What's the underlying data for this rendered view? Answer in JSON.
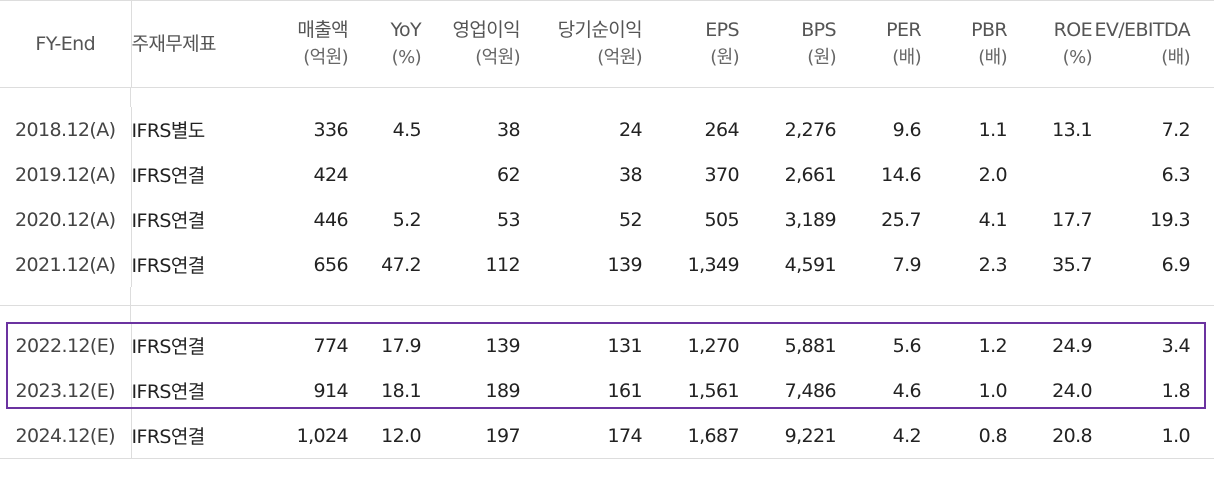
{
  "columns": [
    {
      "label": "FY-End",
      "unit": ""
    },
    {
      "label": "주재무제표",
      "unit": ""
    },
    {
      "label": "매출액",
      "unit": "(억원)"
    },
    {
      "label": "YoY",
      "unit": "(%)"
    },
    {
      "label": "영업이익",
      "unit": "(억원)"
    },
    {
      "label": "당기순이익",
      "unit": "(억원)"
    },
    {
      "label": "EPS",
      "unit": "(원)"
    },
    {
      "label": "BPS",
      "unit": "(원)"
    },
    {
      "label": "PER",
      "unit": "(배)"
    },
    {
      "label": "PBR",
      "unit": "(배)"
    },
    {
      "label": "ROE",
      "unit": "(%)"
    },
    {
      "label": "EV/EBITDA",
      "unit": "(배)"
    }
  ],
  "actual_rows": [
    [
      "2018.12(A)",
      "IFRS별도",
      "336",
      "4.5",
      "38",
      "24",
      "264",
      "2,276",
      "9.6",
      "1.1",
      "13.1",
      "7.2"
    ],
    [
      "2019.12(A)",
      "IFRS연결",
      "424",
      "",
      "62",
      "38",
      "370",
      "2,661",
      "14.6",
      "2.0",
      "",
      "6.3"
    ],
    [
      "2020.12(A)",
      "IFRS연결",
      "446",
      "5.2",
      "53",
      "52",
      "505",
      "3,189",
      "25.7",
      "4.1",
      "17.7",
      "19.3"
    ],
    [
      "2021.12(A)",
      "IFRS연결",
      "656",
      "47.2",
      "112",
      "139",
      "1,349",
      "4,591",
      "7.9",
      "2.3",
      "35.7",
      "6.9"
    ]
  ],
  "estimate_rows": [
    [
      "2022.12(E)",
      "IFRS연결",
      "774",
      "17.9",
      "139",
      "131",
      "1,270",
      "5,881",
      "5.6",
      "1.2",
      "24.9",
      "3.4"
    ],
    [
      "2023.12(E)",
      "IFRS연결",
      "914",
      "18.1",
      "189",
      "161",
      "1,561",
      "7,486",
      "4.6",
      "1.0",
      "24.0",
      "1.8"
    ],
    [
      "2024.12(E)",
      "IFRS연결",
      "1,024",
      "12.0",
      "197",
      "174",
      "1,687",
      "9,221",
      "4.2",
      "0.8",
      "20.8",
      "1.0"
    ]
  ],
  "colors": {
    "highlight_border": "#6b33a0",
    "grid": "#dddddd"
  }
}
